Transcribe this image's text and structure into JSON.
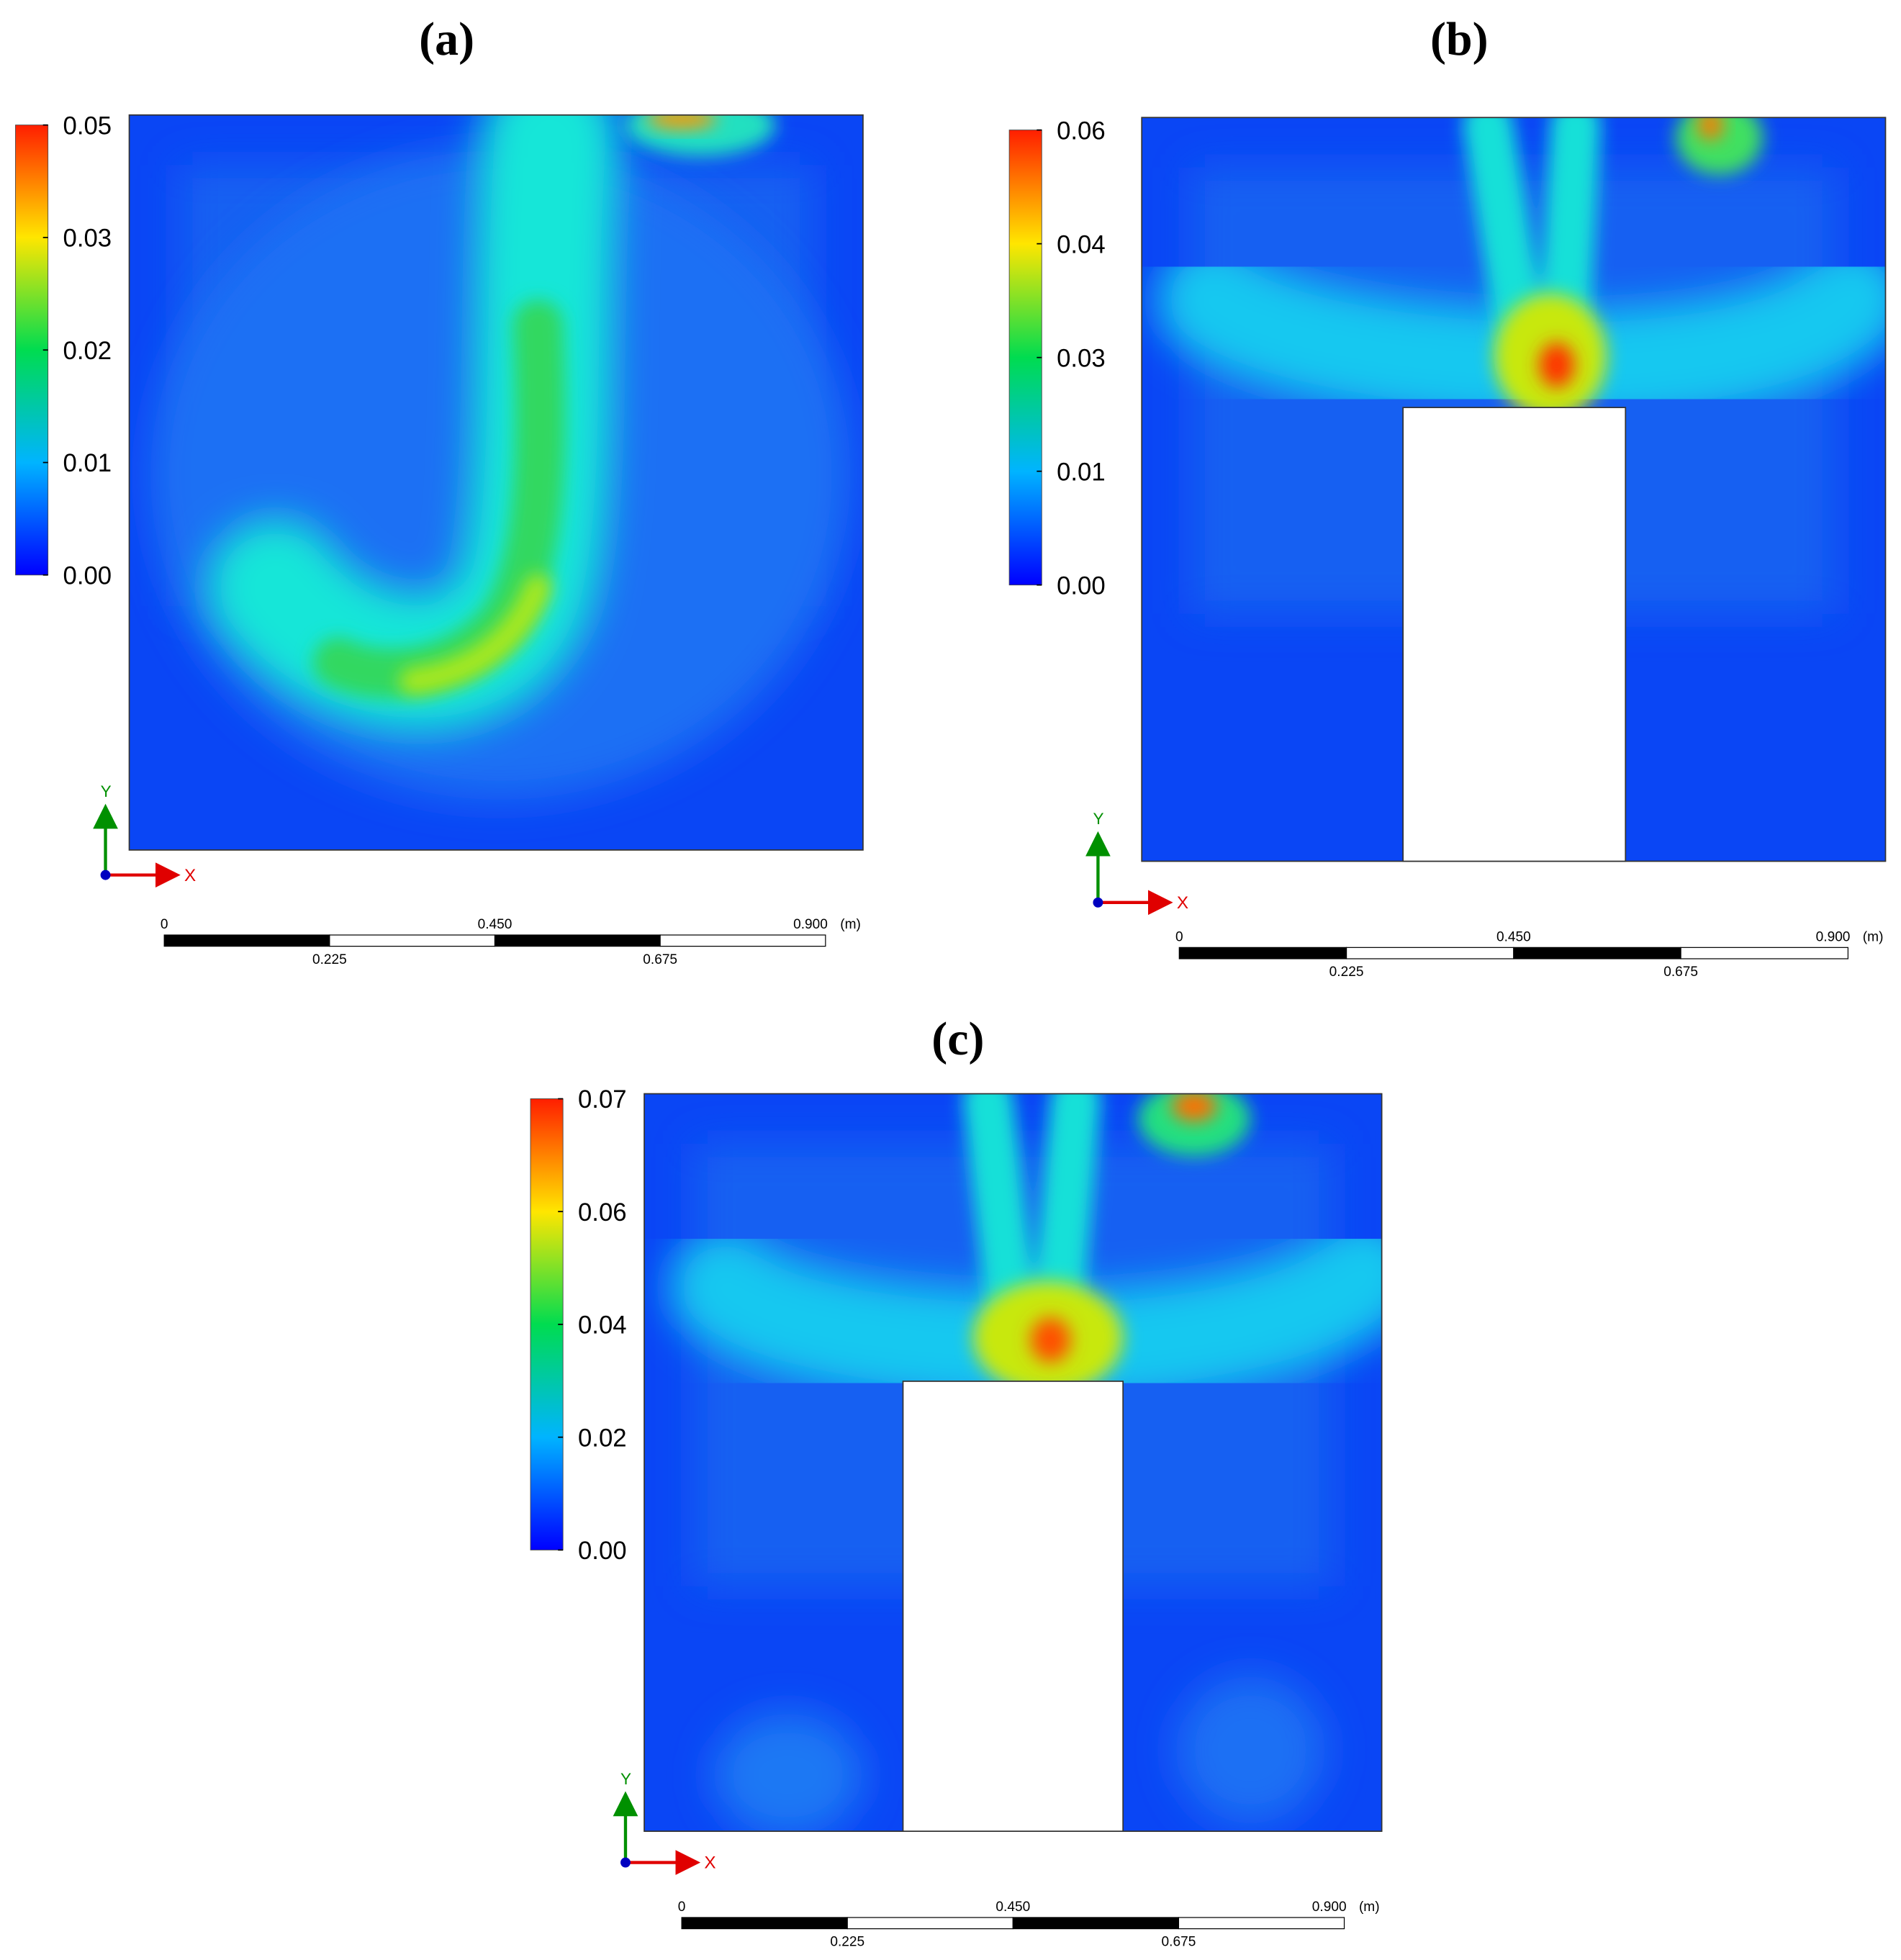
{
  "panels": [
    {
      "label": "(a)",
      "colorbar_ticks": [
        "0.05",
        "0.03",
        "0.02",
        "0.01",
        "0.00"
      ],
      "axes": {
        "x": "X",
        "y": "Y"
      },
      "scale_bar": {
        "start": "0",
        "mid": "0.450",
        "end": "0.900",
        "unit": "(m)",
        "quarter": "0.225",
        "three_quarter": "0.675"
      }
    },
    {
      "label": "(b)",
      "colorbar_ticks": [
        "0.06",
        "0.04",
        "0.03",
        "0.01",
        "0.00"
      ],
      "axes": {
        "x": "X",
        "y": "Y"
      },
      "scale_bar": {
        "start": "0",
        "mid": "0.450",
        "end": "0.900",
        "unit": "(m)",
        "quarter": "0.225",
        "three_quarter": "0.675"
      }
    },
    {
      "label": "(c)",
      "colorbar_ticks": [
        "0.07",
        "0.06",
        "0.04",
        "0.02",
        "0.00"
      ],
      "axes": {
        "x": "X",
        "y": "Y"
      },
      "scale_bar": {
        "start": "0",
        "mid": "0.450",
        "end": "0.900",
        "unit": "(m)",
        "quarter": "0.225",
        "three_quarter": "0.675"
      }
    }
  ]
}
